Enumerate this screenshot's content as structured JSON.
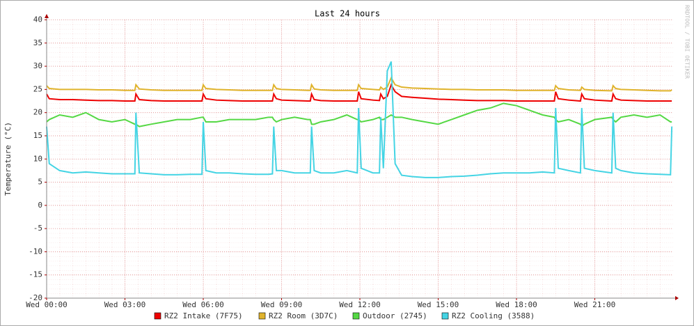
{
  "chart_data": {
    "type": "line",
    "title": "Last 24 hours",
    "y_label": "Temperature (°C)",
    "watermark": "RRDTOOL / TOBI OETIKER",
    "grid": true,
    "legend": "bottom",
    "xlim": [
      0,
      24
    ],
    "ylim": [
      -20,
      40
    ],
    "yticks": [
      -20,
      -15,
      -10,
      -5,
      0,
      5,
      10,
      15,
      20,
      25,
      30,
      35,
      40
    ],
    "xticks": [
      {
        "value": 0,
        "label": "Wed 00:00"
      },
      {
        "value": 3,
        "label": "Wed 03:00"
      },
      {
        "value": 6,
        "label": "Wed 06:00"
      },
      {
        "value": 9,
        "label": "Wed 09:00"
      },
      {
        "value": 12,
        "label": "Wed 12:00"
      },
      {
        "value": 15,
        "label": "Wed 15:00"
      },
      {
        "value": 18,
        "label": "Wed 18:00"
      },
      {
        "value": 21,
        "label": "Wed 21:00"
      }
    ],
    "x": [
      0,
      0.1,
      0.5,
      1,
      1.5,
      2,
      2.5,
      3,
      3.38,
      3.42,
      3.55,
      4,
      4.5,
      5,
      5.5,
      5.95,
      6.0,
      6.1,
      6.5,
      7,
      7.5,
      8,
      8.5,
      8.65,
      8.7,
      8.8,
      9,
      9.5,
      10,
      10.1,
      10.15,
      10.25,
      10.5,
      11,
      11.5,
      11.9,
      11.95,
      12.05,
      12.5,
      12.75,
      12.8,
      12.9,
      13.05,
      13.2,
      13.35,
      13.6,
      14,
      14.5,
      15,
      15.5,
      16,
      16.5,
      17,
      17.5,
      18,
      18.5,
      19,
      19.45,
      19.5,
      19.6,
      20,
      20.45,
      20.5,
      20.6,
      21,
      21.65,
      21.7,
      21.8,
      22,
      22.5,
      23,
      23.5,
      23.9,
      23.95
    ],
    "series": [
      {
        "name": "RZ2 Intake (7F75)",
        "color": "#ee0000",
        "values": [
          24,
          23,
          22.8,
          22.8,
          22.7,
          22.6,
          22.6,
          22.5,
          22.5,
          24,
          22.8,
          22.6,
          22.5,
          22.5,
          22.5,
          22.5,
          24,
          23,
          22.7,
          22.6,
          22.5,
          22.5,
          22.5,
          22.5,
          24,
          23,
          22.7,
          22.6,
          22.5,
          22.5,
          24,
          22.8,
          22.6,
          22.5,
          22.5,
          22.5,
          24.5,
          23,
          22.7,
          22.6,
          24,
          23,
          23.5,
          26,
          24.5,
          23.5,
          23.3,
          23.1,
          22.9,
          22.8,
          22.7,
          22.6,
          22.6,
          22.6,
          22.5,
          22.5,
          22.5,
          22.5,
          24.5,
          23,
          22.7,
          22.5,
          24,
          23,
          22.7,
          22.5,
          24,
          23,
          22.7,
          22.6,
          22.5,
          22.5,
          22.5,
          22.5
        ]
      },
      {
        "name": "RZ2 Room (3D7C)",
        "color": "#e0b32c",
        "values": [
          25.8,
          25.2,
          25,
          25,
          25,
          24.9,
          24.9,
          24.8,
          24.8,
          26,
          25.1,
          24.9,
          24.8,
          24.8,
          24.8,
          24.8,
          26,
          25.2,
          25,
          24.9,
          24.8,
          24.8,
          24.8,
          24.8,
          26,
          25.2,
          25,
          24.9,
          24.8,
          24.8,
          26,
          25.1,
          24.9,
          24.8,
          24.8,
          24.8,
          26,
          25.2,
          25,
          24.9,
          25.5,
          25,
          25.5,
          27.5,
          26,
          25.5,
          25.3,
          25.2,
          25.1,
          25,
          25,
          24.9,
          24.9,
          24.9,
          24.8,
          24.8,
          24.8,
          24.8,
          25.8,
          25.2,
          24.9,
          24.8,
          25.5,
          25,
          24.8,
          24.7,
          25.8,
          25.2,
          25,
          24.9,
          24.8,
          24.7,
          24.7,
          24.9
        ]
      },
      {
        "name": "Outdoor (2745)",
        "color": "#55d844",
        "values": [
          18,
          18.5,
          19.5,
          19,
          20,
          18.5,
          18,
          18.5,
          17.5,
          17.5,
          17,
          17.5,
          18,
          18.5,
          18.5,
          19,
          19,
          18,
          18,
          18.5,
          18.5,
          18.5,
          19,
          19,
          18.5,
          18,
          18.5,
          19,
          18.5,
          18.5,
          17.5,
          17.5,
          18,
          18.5,
          19.5,
          18.5,
          18.5,
          18,
          18.5,
          19,
          18.5,
          18.5,
          19,
          19.5,
          19,
          19,
          18.5,
          18,
          17.5,
          18.5,
          19.5,
          20.5,
          21,
          22,
          21.5,
          20.5,
          19.5,
          19,
          18.5,
          18,
          18.5,
          17.5,
          17,
          17.5,
          18.5,
          19,
          18.5,
          18,
          19,
          19.5,
          19,
          19.5,
          18,
          18
        ]
      },
      {
        "name": "RZ2 Cooling (3588)",
        "color": "#44d4e4",
        "values": [
          17,
          9,
          7.5,
          7,
          7.2,
          7,
          6.8,
          6.8,
          6.8,
          20,
          7,
          6.8,
          6.6,
          6.6,
          6.7,
          6.7,
          18,
          7.5,
          7,
          7,
          6.8,
          6.7,
          6.7,
          6.8,
          17,
          7.5,
          7.5,
          7,
          7,
          7,
          17,
          7.5,
          7,
          7,
          7.5,
          7,
          21,
          8,
          7,
          7,
          19,
          8,
          29,
          31,
          9,
          6.5,
          6.2,
          6,
          6,
          6.2,
          6.3,
          6.5,
          6.8,
          7,
          7,
          7,
          7.2,
          7,
          21,
          8,
          7.5,
          7,
          21,
          8,
          7.5,
          7,
          20,
          8,
          7.5,
          7,
          6.8,
          6.7,
          6.6,
          17
        ]
      }
    ]
  }
}
